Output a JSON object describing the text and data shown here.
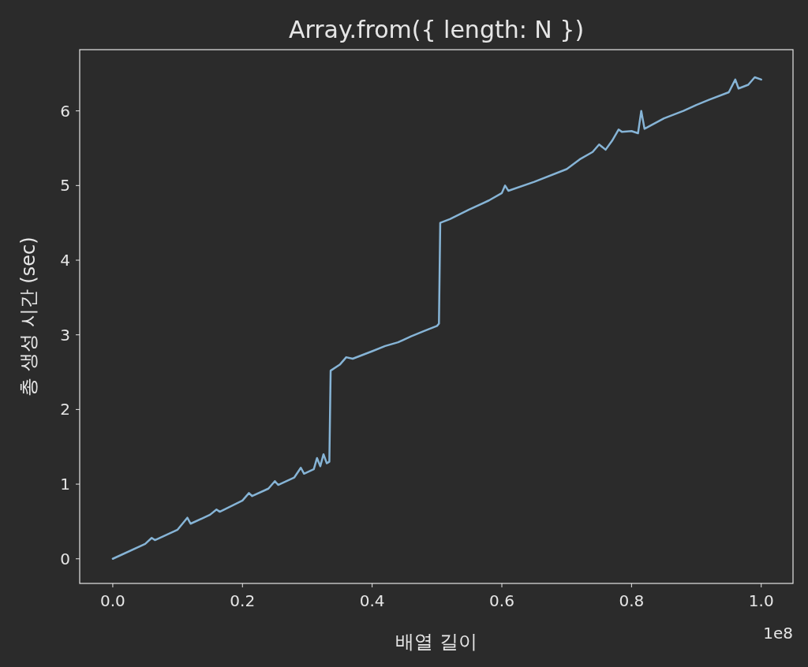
{
  "chart_data": {
    "type": "line",
    "title": "Array.from({ length: N })",
    "xlabel": "배열 길이",
    "ylabel": "총 생성 시간 (sec)",
    "annotations": [
      "1e8"
    ],
    "xlim": [
      -0.051,
      1.049
    ],
    "ylim": [
      -0.33,
      6.82
    ],
    "xticks": [
      {
        "value": 0,
        "label": "0.0"
      },
      0.2,
      0.4,
      0.6,
      0.8,
      {
        "value": 1,
        "label": "1.0"
      }
    ],
    "yticks": [
      0,
      1,
      2,
      3,
      4,
      5,
      6
    ],
    "marker": "none",
    "line_style": "solid",
    "series": [
      {
        "color": "#86b4d6",
        "x": [
          0,
          0.05,
          0.06,
          0.065,
          0.1,
          0.115,
          0.12,
          0.15,
          0.16,
          0.165,
          0.2,
          0.21,
          0.215,
          0.24,
          0.25,
          0.255,
          0.28,
          0.29,
          0.295,
          0.31,
          0.315,
          0.32,
          0.325,
          0.33,
          0.334,
          0.336,
          0.35,
          0.36,
          0.37,
          0.4,
          0.42,
          0.44,
          0.46,
          0.48,
          0.5,
          0.503,
          0.505,
          0.52,
          0.55,
          0.58,
          0.6,
          0.605,
          0.61,
          0.65,
          0.7,
          0.72,
          0.74,
          0.75,
          0.76,
          0.77,
          0.78,
          0.785,
          0.8,
          0.81,
          0.815,
          0.82,
          0.85,
          0.88,
          0.9,
          0.92,
          0.95,
          0.96,
          0.965,
          0.98,
          0.99,
          1.0
        ],
        "values": [
          0,
          0.2,
          0.28,
          0.25,
          0.39,
          0.55,
          0.47,
          0.59,
          0.66,
          0.63,
          0.78,
          0.88,
          0.84,
          0.94,
          1.04,
          0.99,
          1.09,
          1.22,
          1.14,
          1.2,
          1.35,
          1.24,
          1.4,
          1.28,
          1.3,
          2.52,
          2.6,
          2.7,
          2.68,
          2.78,
          2.85,
          2.9,
          2.98,
          3.05,
          3.12,
          3.15,
          4.5,
          4.55,
          4.68,
          4.8,
          4.9,
          5.0,
          4.93,
          5.05,
          5.22,
          5.35,
          5.45,
          5.55,
          5.48,
          5.6,
          5.75,
          5.72,
          5.73,
          5.7,
          6.0,
          5.76,
          5.9,
          6.0,
          6.08,
          6.15,
          6.25,
          6.42,
          6.3,
          6.35,
          6.45,
          6.42
        ]
      }
    ]
  }
}
